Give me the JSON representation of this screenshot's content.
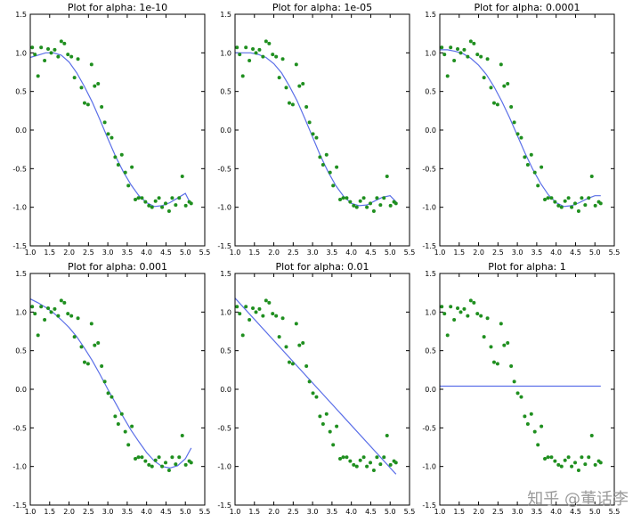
{
  "chart_data": [
    {
      "type": "scatter+line",
      "title": "Plot for alpha: 1e-10",
      "xlim": [
        1.0,
        5.5
      ],
      "ylim": [
        -1.5,
        1.5
      ],
      "xticks": [
        "1.0",
        "1.5",
        "2.0",
        "2.5",
        "3.0",
        "3.5",
        "4.0",
        "4.5",
        "5.0",
        "5.5"
      ],
      "yticks": [
        "1.5",
        "1.0",
        "0.5",
        "0.0",
        "-0.5",
        "-1.0",
        "-1.5"
      ],
      "fit": {
        "x": [
          1.0,
          1.2,
          1.4,
          1.6,
          1.8,
          2.0,
          2.2,
          2.4,
          2.6,
          2.8,
          3.0,
          3.2,
          3.4,
          3.6,
          3.8,
          4.0,
          4.2,
          4.4,
          4.6,
          4.8,
          5.0,
          5.15
        ],
        "y": [
          0.94,
          0.97,
          1.0,
          1.0,
          0.97,
          0.88,
          0.74,
          0.56,
          0.36,
          0.13,
          -0.11,
          -0.34,
          -0.54,
          -0.71,
          -0.85,
          -0.94,
          -0.99,
          -0.98,
          -0.94,
          -0.88,
          -0.82,
          -0.97
        ]
      }
    },
    {
      "type": "scatter+line",
      "title": "Plot for alpha: 1e-05",
      "xlim": [
        1.0,
        5.5
      ],
      "ylim": [
        -1.5,
        1.5
      ],
      "xticks": [
        "1.0",
        "1.5",
        "2.0",
        "2.5",
        "3.0",
        "3.5",
        "4.0",
        "4.5",
        "5.0",
        "5.5"
      ],
      "yticks": [
        "1.5",
        "1.0",
        "0.5",
        "0.0",
        "-0.5",
        "-1.0",
        "-1.5"
      ],
      "fit": {
        "x": [
          1.0,
          1.2,
          1.4,
          1.6,
          1.8,
          2.0,
          2.2,
          2.4,
          2.6,
          2.8,
          3.0,
          3.2,
          3.4,
          3.6,
          3.8,
          4.0,
          4.2,
          4.4,
          4.6,
          4.8,
          5.0,
          5.15
        ],
        "y": [
          1.0,
          1.0,
          1.0,
          0.98,
          0.94,
          0.86,
          0.74,
          0.57,
          0.38,
          0.15,
          -0.09,
          -0.33,
          -0.54,
          -0.72,
          -0.86,
          -0.95,
          -0.98,
          -0.97,
          -0.92,
          -0.87,
          -0.85,
          -0.93
        ]
      }
    },
    {
      "type": "scatter+line",
      "title": "Plot for alpha: 0.0001",
      "xlim": [
        1.0,
        5.5
      ],
      "ylim": [
        -1.5,
        1.5
      ],
      "xticks": [
        "1.0",
        "1.5",
        "2.0",
        "2.5",
        "3.0",
        "3.5",
        "4.0",
        "4.5",
        "5.0",
        "5.5"
      ],
      "yticks": [
        "1.5",
        "1.0",
        "0.5",
        "0.0",
        "-0.5",
        "-1.0",
        "-1.5"
      ],
      "fit": {
        "x": [
          1.0,
          1.2,
          1.4,
          1.6,
          1.8,
          2.0,
          2.2,
          2.4,
          2.6,
          2.8,
          3.0,
          3.2,
          3.4,
          3.6,
          3.8,
          4.0,
          4.2,
          4.4,
          4.6,
          4.8,
          5.0,
          5.15
        ],
        "y": [
          1.04,
          1.04,
          1.02,
          0.99,
          0.93,
          0.84,
          0.72,
          0.56,
          0.37,
          0.16,
          -0.07,
          -0.3,
          -0.51,
          -0.69,
          -0.84,
          -0.94,
          -0.99,
          -0.98,
          -0.94,
          -0.89,
          -0.85,
          -0.85
        ]
      }
    },
    {
      "type": "scatter+line",
      "title": "Plot for alpha: 0.001",
      "xlim": [
        1.0,
        5.5
      ],
      "ylim": [
        -1.5,
        1.5
      ],
      "xticks": [
        "1.0",
        "1.5",
        "2.0",
        "2.5",
        "3.0",
        "3.5",
        "4.0",
        "4.5",
        "5.0",
        "5.5"
      ],
      "yticks": [
        "1.5",
        "1.0",
        "0.5",
        "0.0",
        "-0.5",
        "-1.0",
        "-1.5"
      ],
      "fit": {
        "x": [
          1.0,
          1.2,
          1.4,
          1.6,
          1.8,
          2.0,
          2.2,
          2.4,
          2.6,
          2.8,
          3.0,
          3.2,
          3.4,
          3.6,
          3.8,
          4.0,
          4.2,
          4.4,
          4.6,
          4.8,
          5.0,
          5.15
        ],
        "y": [
          1.17,
          1.12,
          1.06,
          0.99,
          0.9,
          0.8,
          0.68,
          0.53,
          0.37,
          0.19,
          0.0,
          -0.18,
          -0.36,
          -0.53,
          -0.68,
          -0.82,
          -0.93,
          -1.0,
          -1.02,
          -0.99,
          -0.9,
          -0.76
        ]
      }
    },
    {
      "type": "scatter+line",
      "title": "Plot for alpha: 0.01",
      "xlim": [
        1.0,
        5.5
      ],
      "ylim": [
        -1.5,
        1.5
      ],
      "xticks": [
        "1.0",
        "1.5",
        "2.0",
        "2.5",
        "3.0",
        "3.5",
        "4.0",
        "4.5",
        "5.0",
        "5.5"
      ],
      "yticks": [
        "1.5",
        "1.0",
        "0.5",
        "0.0",
        "-0.5",
        "-1.0",
        "-1.5"
      ],
      "fit": {
        "x": [
          1.0,
          5.15
        ],
        "y": [
          1.18,
          -1.1
        ]
      }
    },
    {
      "type": "scatter+line",
      "title": "Plot for alpha: 1",
      "xlim": [
        1.0,
        5.5
      ],
      "ylim": [
        -1.5,
        1.5
      ],
      "xticks": [
        "1.0",
        "1.5",
        "2.0",
        "2.5",
        "3.0",
        "3.5",
        "4.0",
        "4.5",
        "5.0",
        "5.5"
      ],
      "yticks": [
        "1.5",
        "1.0",
        "0.5",
        "0.0",
        "-0.5",
        "-1.0",
        "-1.5"
      ],
      "fit": {
        "x": [
          1.0,
          5.15
        ],
        "y": [
          0.04,
          0.04
        ]
      }
    }
  ],
  "shared_points": {
    "x": [
      1.05,
      1.12,
      1.2,
      1.28,
      1.37,
      1.46,
      1.54,
      1.63,
      1.72,
      1.8,
      1.88,
      1.97,
      2.06,
      2.14,
      2.23,
      2.32,
      2.4,
      2.49,
      2.58,
      2.66,
      2.75,
      2.84,
      2.92,
      3.01,
      3.1,
      3.19,
      3.27,
      3.36,
      3.45,
      3.53,
      3.62,
      3.71,
      3.79,
      3.88,
      3.97,
      4.06,
      4.14,
      4.23,
      4.32,
      4.4,
      4.49,
      4.58,
      4.66,
      4.75,
      4.84,
      4.92,
      5.01,
      5.1,
      5.15
    ],
    "y": [
      1.07,
      0.98,
      0.7,
      1.07,
      0.9,
      1.05,
      1.0,
      1.04,
      0.95,
      1.15,
      1.12,
      0.98,
      0.95,
      0.68,
      0.92,
      0.55,
      0.35,
      0.33,
      0.85,
      0.57,
      0.6,
      0.3,
      0.1,
      -0.05,
      -0.1,
      -0.35,
      -0.45,
      -0.32,
      -0.55,
      -0.72,
      -0.48,
      -0.9,
      -0.88,
      -0.88,
      -0.93,
      -0.98,
      -1.0,
      -0.92,
      -0.88,
      -1.0,
      -0.95,
      -1.05,
      -0.88,
      -0.97,
      -0.88,
      -0.6,
      -0.98,
      -0.93,
      -0.95
    ],
    "color": "#1f8f1f"
  },
  "line_color": "#5b6fe8",
  "watermark": "知乎 @董话李"
}
